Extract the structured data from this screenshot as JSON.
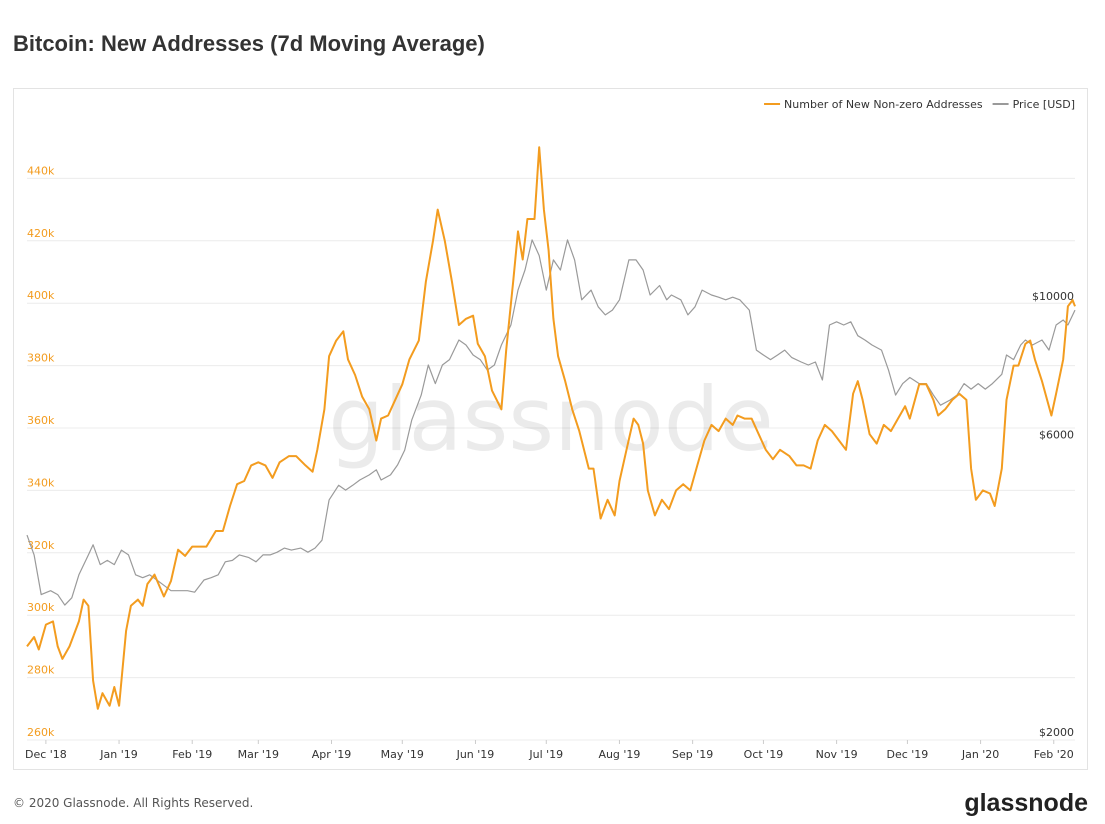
{
  "chart_data": {
    "type": "line",
    "title": "Bitcoin: New Addresses (7d Moving Average)",
    "watermark": "glassnode",
    "footer": "© 2020 Glassnode. All Rights Reserved.",
    "logo": "glassnode",
    "legend": "top-right",
    "grid": true,
    "xlim": [
      -8,
      436
    ],
    "xticks": [
      {
        "value": 0,
        "label": "Dec '18"
      },
      {
        "value": 31,
        "label": "Jan '19"
      },
      {
        "value": 62,
        "label": "Feb '19"
      },
      {
        "value": 90,
        "label": "Mar '19"
      },
      {
        "value": 121,
        "label": "Apr '19"
      },
      {
        "value": 151,
        "label": "May '19"
      },
      {
        "value": 182,
        "label": "Jun '19"
      },
      {
        "value": 212,
        "label": "Jul '19"
      },
      {
        "value": 243,
        "label": "Aug '19"
      },
      {
        "value": 274,
        "label": "Sep '19"
      },
      {
        "value": 304,
        "label": "Oct '19"
      },
      {
        "value": 335,
        "label": "Nov '19"
      },
      {
        "value": 365,
        "label": "Dec '19"
      },
      {
        "value": 396,
        "label": "Jan '20"
      },
      {
        "value": 427,
        "label": "Feb '20"
      }
    ],
    "ylim": [
      260000,
      460000
    ],
    "yticks": [
      {
        "value": 260000,
        "label": "260k"
      },
      {
        "value": 280000,
        "label": "280k"
      },
      {
        "value": 300000,
        "label": "300k"
      },
      {
        "value": 320000,
        "label": "320k"
      },
      {
        "value": 340000,
        "label": "340k"
      },
      {
        "value": 360000,
        "label": "360k"
      },
      {
        "value": 380000,
        "label": "380k"
      },
      {
        "value": 400000,
        "label": "400k"
      },
      {
        "value": 420000,
        "label": "420k"
      },
      {
        "value": 440000,
        "label": "440k"
      }
    ],
    "y2lim": [
      2000,
      20000
    ],
    "y2log": true,
    "y2ticks": [
      {
        "value": 2000,
        "label": "$2000"
      },
      {
        "value": 6000,
        "label": "$6000"
      },
      {
        "value": 10000,
        "label": "$10000"
      }
    ],
    "series": [
      {
        "name": "Number of New Non-zero Addresses",
        "color": "#f39c1f",
        "x": [
          -8,
          -5,
          -3,
          0,
          3,
          5,
          7,
          10,
          14,
          16,
          18,
          20,
          22,
          24,
          27,
          29,
          31,
          34,
          36,
          39,
          41,
          43,
          46,
          50,
          53,
          56,
          59,
          62,
          65,
          68,
          72,
          75,
          78,
          81,
          84,
          87,
          90,
          93,
          96,
          99,
          103,
          106,
          110,
          113,
          115,
          118,
          120,
          123,
          126,
          128,
          131,
          134,
          137,
          140,
          142,
          145,
          148,
          151,
          154,
          158,
          161,
          164,
          166,
          169,
          172,
          175,
          178,
          181,
          183,
          186,
          189,
          193,
          195,
          198,
          200,
          202,
          204,
          207,
          209,
          211,
          213,
          215,
          217,
          220,
          223,
          226,
          230,
          232,
          235,
          238,
          241,
          243,
          246,
          249,
          251,
          253,
          255,
          258,
          261,
          264,
          267,
          270,
          273,
          276,
          279,
          282,
          285,
          288,
          291,
          293,
          296,
          299,
          302,
          305,
          308,
          311,
          315,
          318,
          321,
          324,
          327,
          330,
          333,
          336,
          339,
          342,
          344,
          346,
          349,
          352,
          355,
          358,
          361,
          364,
          366,
          370,
          373,
          376,
          378,
          381,
          384,
          387,
          390,
          392,
          394,
          397,
          400,
          402,
          405,
          407,
          410,
          412,
          415,
          417,
          419,
          422,
          426,
          428,
          431,
          433,
          435,
          436
        ],
        "values": [
          290000,
          293000,
          289000,
          297000,
          298000,
          290000,
          286000,
          290000,
          298000,
          305000,
          303000,
          279000,
          270000,
          275000,
          271000,
          277000,
          271000,
          295000,
          303000,
          305000,
          303000,
          310000,
          313000,
          306000,
          311000,
          321000,
          319000,
          322000,
          322000,
          322000,
          327000,
          327000,
          335000,
          342000,
          343000,
          348000,
          349000,
          348000,
          344000,
          349000,
          351000,
          351000,
          348000,
          346000,
          353000,
          366000,
          383000,
          388000,
          391000,
          382000,
          377000,
          370000,
          366000,
          356000,
          363000,
          364000,
          369000,
          374000,
          382000,
          388000,
          407000,
          420000,
          430000,
          420000,
          407000,
          393000,
          395000,
          396000,
          387000,
          383000,
          372000,
          366000,
          385000,
          407000,
          423000,
          414000,
          427000,
          427000,
          450000,
          430000,
          417000,
          395000,
          383000,
          375000,
          366000,
          359000,
          347000,
          347000,
          331000,
          337000,
          332000,
          343000,
          353000,
          363000,
          361000,
          355000,
          340000,
          332000,
          337000,
          334000,
          340000,
          342000,
          340000,
          348000,
          356000,
          361000,
          359000,
          363000,
          361000,
          364000,
          363000,
          363000,
          358000,
          353000,
          350000,
          353000,
          351000,
          348000,
          348000,
          347000,
          356000,
          361000,
          359000,
          356000,
          353000,
          371000,
          375000,
          369000,
          358000,
          355000,
          361000,
          359000,
          363000,
          367000,
          363000,
          374000,
          374000,
          369000,
          364000,
          366000,
          369000,
          371000,
          369000,
          347000,
          337000,
          340000,
          339000,
          335000,
          347000,
          369000,
          380000,
          380000,
          387000,
          388000,
          382000,
          375000,
          364000,
          371000,
          382000,
          399000,
          401000,
          399000
        ]
      },
      {
        "name": "Price [USD]",
        "color": "#9a9a9a",
        "axis": "y2",
        "x": [
          -8,
          -5,
          -2,
          2,
          5,
          8,
          11,
          14,
          18,
          20,
          23,
          26,
          29,
          32,
          35,
          38,
          41,
          44,
          47,
          50,
          53,
          57,
          60,
          63,
          67,
          70,
          73,
          76,
          79,
          82,
          86,
          89,
          92,
          95,
          98,
          101,
          104,
          108,
          111,
          114,
          117,
          120,
          124,
          127,
          130,
          133,
          137,
          140,
          142,
          146,
          149,
          152,
          155,
          159,
          162,
          165,
          168,
          171,
          175,
          178,
          181,
          184,
          187,
          190,
          193,
          197,
          200,
          203,
          206,
          209,
          212,
          215,
          218,
          221,
          224,
          227,
          231,
          234,
          237,
          240,
          243,
          247,
          250,
          253,
          256,
          260,
          263,
          265,
          269,
          272,
          275,
          278,
          282,
          285,
          288,
          291,
          294,
          298,
          301,
          304,
          307,
          310,
          313,
          316,
          320,
          323,
          326,
          329,
          332,
          335,
          338,
          341,
          344,
          347,
          350,
          354,
          357,
          360,
          363,
          366,
          370,
          373,
          376,
          379,
          383,
          386,
          389,
          392,
          395,
          398,
          401,
          405,
          407,
          410,
          413,
          415,
          418,
          422,
          425,
          428,
          431,
          433,
          436
        ],
        "values": [
          4260,
          3960,
          3420,
          3470,
          3420,
          3290,
          3380,
          3680,
          3960,
          4110,
          3820,
          3880,
          3820,
          4030,
          3960,
          3680,
          3640,
          3680,
          3610,
          3540,
          3470,
          3470,
          3470,
          3450,
          3610,
          3640,
          3680,
          3860,
          3880,
          3960,
          3920,
          3860,
          3960,
          3960,
          4000,
          4060,
          4030,
          4060,
          4000,
          4060,
          4180,
          4850,
          5120,
          5030,
          5120,
          5220,
          5320,
          5420,
          5220,
          5320,
          5520,
          5830,
          6510,
          7140,
          7980,
          7450,
          7980,
          8140,
          8750,
          8590,
          8280,
          8140,
          7830,
          7980,
          8590,
          9250,
          10520,
          11330,
          12660,
          11950,
          10520,
          11760,
          11330,
          12660,
          11760,
          10150,
          10520,
          9890,
          9600,
          9770,
          10150,
          11760,
          11760,
          11330,
          10330,
          10700,
          10150,
          10330,
          10150,
          9600,
          9890,
          10520,
          10330,
          10250,
          10150,
          10250,
          10150,
          9770,
          8430,
          8280,
          8140,
          8280,
          8430,
          8200,
          8070,
          7980,
          8070,
          7550,
          9250,
          9360,
          9250,
          9360,
          8890,
          8750,
          8590,
          8430,
          7830,
          7140,
          7450,
          7620,
          7450,
          7450,
          7140,
          6880,
          7010,
          7140,
          7450,
          7300,
          7450,
          7300,
          7450,
          7710,
          8280,
          8140,
          8590,
          8750,
          8590,
          8750,
          8430,
          9250,
          9420,
          9250,
          9770
        ]
      }
    ]
  }
}
